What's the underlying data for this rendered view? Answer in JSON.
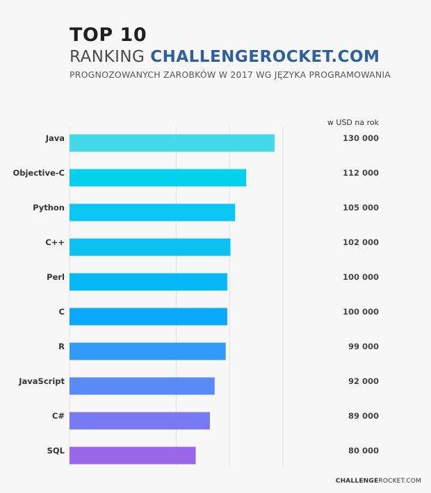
{
  "header": {
    "title_line1": "TOP 10",
    "title_line2_prefix": "RANKING",
    "title_line2_brand": "CHALLENGEROCKET.COM",
    "subtitle": "PROGNOZOWANYCH ZAROBKÓW W 2017 WG JĘZYKA PROGRAMOWANIA"
  },
  "chart_data": {
    "type": "bar",
    "orientation": "horizontal",
    "title": "",
    "unit_label": "w USD na rok",
    "categories": [
      "Java",
      "Objective-C",
      "Python",
      "C++",
      "Perl",
      "C",
      "R",
      "JavaScript",
      "C#",
      "SQL"
    ],
    "values": [
      130000,
      112000,
      105000,
      102000,
      100000,
      100000,
      99000,
      92000,
      89000,
      80000
    ],
    "value_labels": [
      "130 000",
      "112 000",
      "105 000",
      "102 000",
      "100 000",
      "100 000",
      "99 000",
      "92 000",
      "89 000",
      "80 000"
    ],
    "xlim": [
      0,
      130000
    ],
    "grid": true,
    "colors": [
      "#43d9e8",
      "#05d0ee",
      "#09c6f2",
      "#0ebff2",
      "#07b8f6",
      "#0aa9fb",
      "#3399f7",
      "#5a8af5",
      "#7779f2",
      "#9b67ea"
    ]
  },
  "footer": {
    "brand_bold": "CHALLENGE",
    "brand_rest": "ROCKET.COM"
  }
}
